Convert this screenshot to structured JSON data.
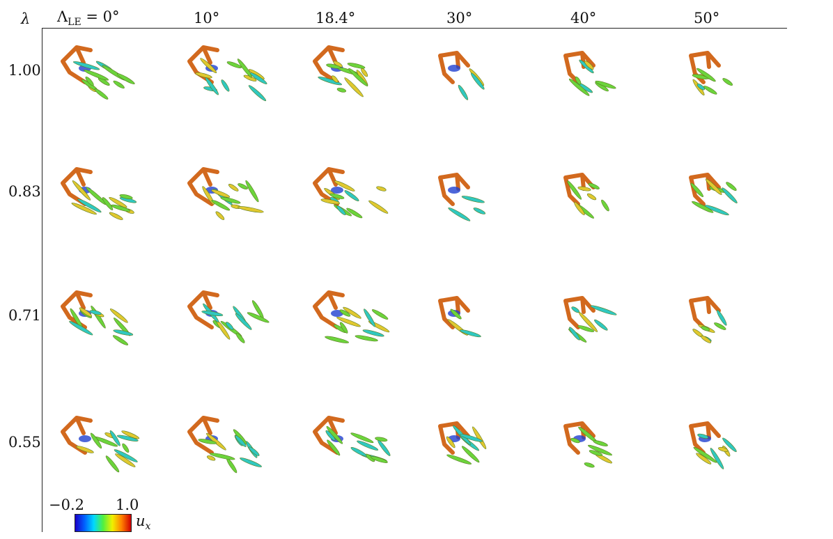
{
  "header": {
    "lambda_symbol": "λ",
    "sweep_prefix": "Λ",
    "sweep_sub": "LE",
    "sweep_eq": " = 0°",
    "columns": [
      "10°",
      "18.4°",
      "30°",
      "40°",
      "50°"
    ]
  },
  "rows": [
    "1.00",
    "0.83",
    "0.71",
    "0.55"
  ],
  "colorbar": {
    "min_label": "−0.2",
    "max_label": "1.0",
    "var_main": "u",
    "var_sub": "x",
    "colors": [
      "#1a00c8",
      "#0060ff",
      "#00d8ff",
      "#50f040",
      "#f0f000",
      "#ff8000",
      "#d00000"
    ]
  },
  "colors": {
    "edge_vortex": "#d2691e",
    "wake_green": "#6cd43c",
    "wake_yellow": "#e0c830",
    "core_blue": "#2040d0",
    "core_cyan": "#30c8c0"
  }
}
